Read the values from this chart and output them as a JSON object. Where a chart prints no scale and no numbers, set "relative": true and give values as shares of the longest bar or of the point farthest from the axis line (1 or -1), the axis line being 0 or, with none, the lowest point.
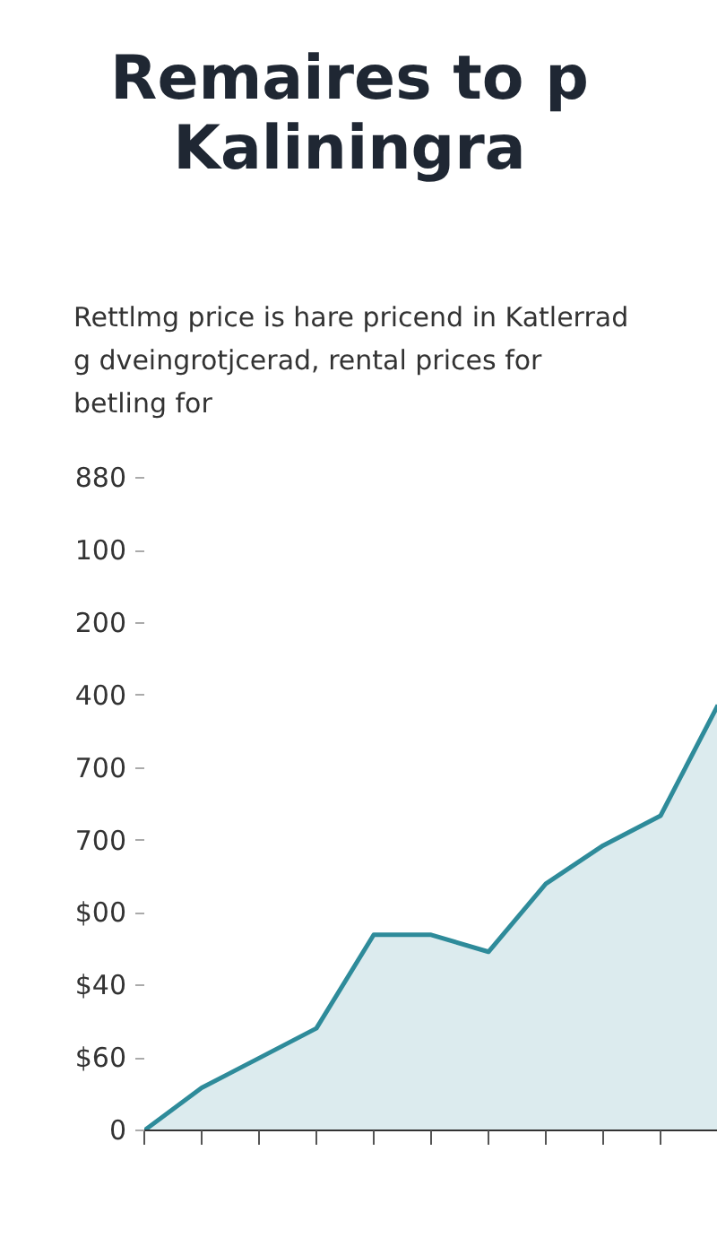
{
  "chart_data": {
    "type": "area",
    "title": "Remaires to p Kaliningra",
    "subtitle": "Rettlmg price is hare pricend in Katlerrad g dveingrotjcerad, rental prices for betling for",
    "relative": true,
    "categories": [
      null,
      null,
      null,
      null,
      null,
      null,
      null,
      null,
      null,
      null,
      null
    ],
    "series": [
      {
        "color": "#2e8b9a",
        "values": [
          0,
          0.1,
          0.17,
          0.24,
          0.46,
          0.46,
          0.42,
          0.58,
          0.67,
          0.74,
          1
        ]
      }
    ],
    "annotations": [
      "880",
      "100",
      "200",
      "400",
      "700",
      "700",
      "$00",
      "$40",
      "$60",
      "0"
    ]
  }
}
